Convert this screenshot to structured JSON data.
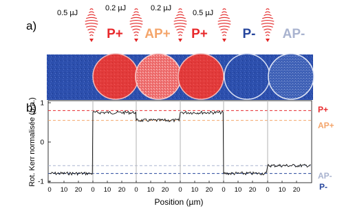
{
  "figure": {
    "label_a": "a)",
    "label_b": "b)",
    "pulses": [
      {
        "energy": "0.5 µJ"
      },
      {
        "energy": "0.2 µJ"
      },
      {
        "energy": "0.2 µJ"
      },
      {
        "energy": "0.5 µJ"
      },
      {
        "energy": ""
      },
      {
        "energy": ""
      }
    ],
    "states": [
      {
        "label": "P+",
        "color": "#e8282b"
      },
      {
        "label": "AP+",
        "color": "#f4a56b"
      },
      {
        "label": "P+",
        "color": "#e8282b"
      },
      {
        "label": "P-",
        "color": "#26459c"
      },
      {
        "label": "AP-",
        "color": "#a9b3cf"
      }
    ],
    "colors": {
      "domain_red": "#e53535",
      "domain_pink": "#f07575",
      "background_blue": "#2c4fad",
      "p_plus": "#e8282b",
      "ap_plus": "#f4a56b",
      "p_minus": "#26459c",
      "ap_minus": "#a9b3cf",
      "pulse": "#e32626",
      "trace": "#111111"
    }
  },
  "chart_data": {
    "type": "line",
    "ylabel": "Rot. Kerr normalisée (u.a.)",
    "xlabel": "Position (µm)",
    "ylim": [
      -1,
      1
    ],
    "y_ticks": [
      "1",
      "0",
      "-1"
    ],
    "x_tick_labels": [
      "0",
      "10",
      "20"
    ],
    "segment_x_range": [
      0,
      30
    ],
    "grid": false,
    "segments": [
      {
        "state": "initial",
        "y": -0.8
      },
      {
        "state": "P+",
        "y": 0.75
      },
      {
        "state": "AP+",
        "y": 0.55
      },
      {
        "state": "P+",
        "y": 0.75
      },
      {
        "state": "P-",
        "y": -0.8
      },
      {
        "state": "AP-",
        "y": -0.6
      }
    ],
    "reference_lines": [
      {
        "label": "P+",
        "y": 0.8,
        "color": "#e8282b"
      },
      {
        "label": "AP+",
        "y": 0.55,
        "color": "#f4a56b"
      },
      {
        "label": "AP-",
        "y": -0.6,
        "color": "#a9b3cf"
      },
      {
        "label": "P-",
        "y": -0.8,
        "color": "#26459c"
      }
    ]
  }
}
